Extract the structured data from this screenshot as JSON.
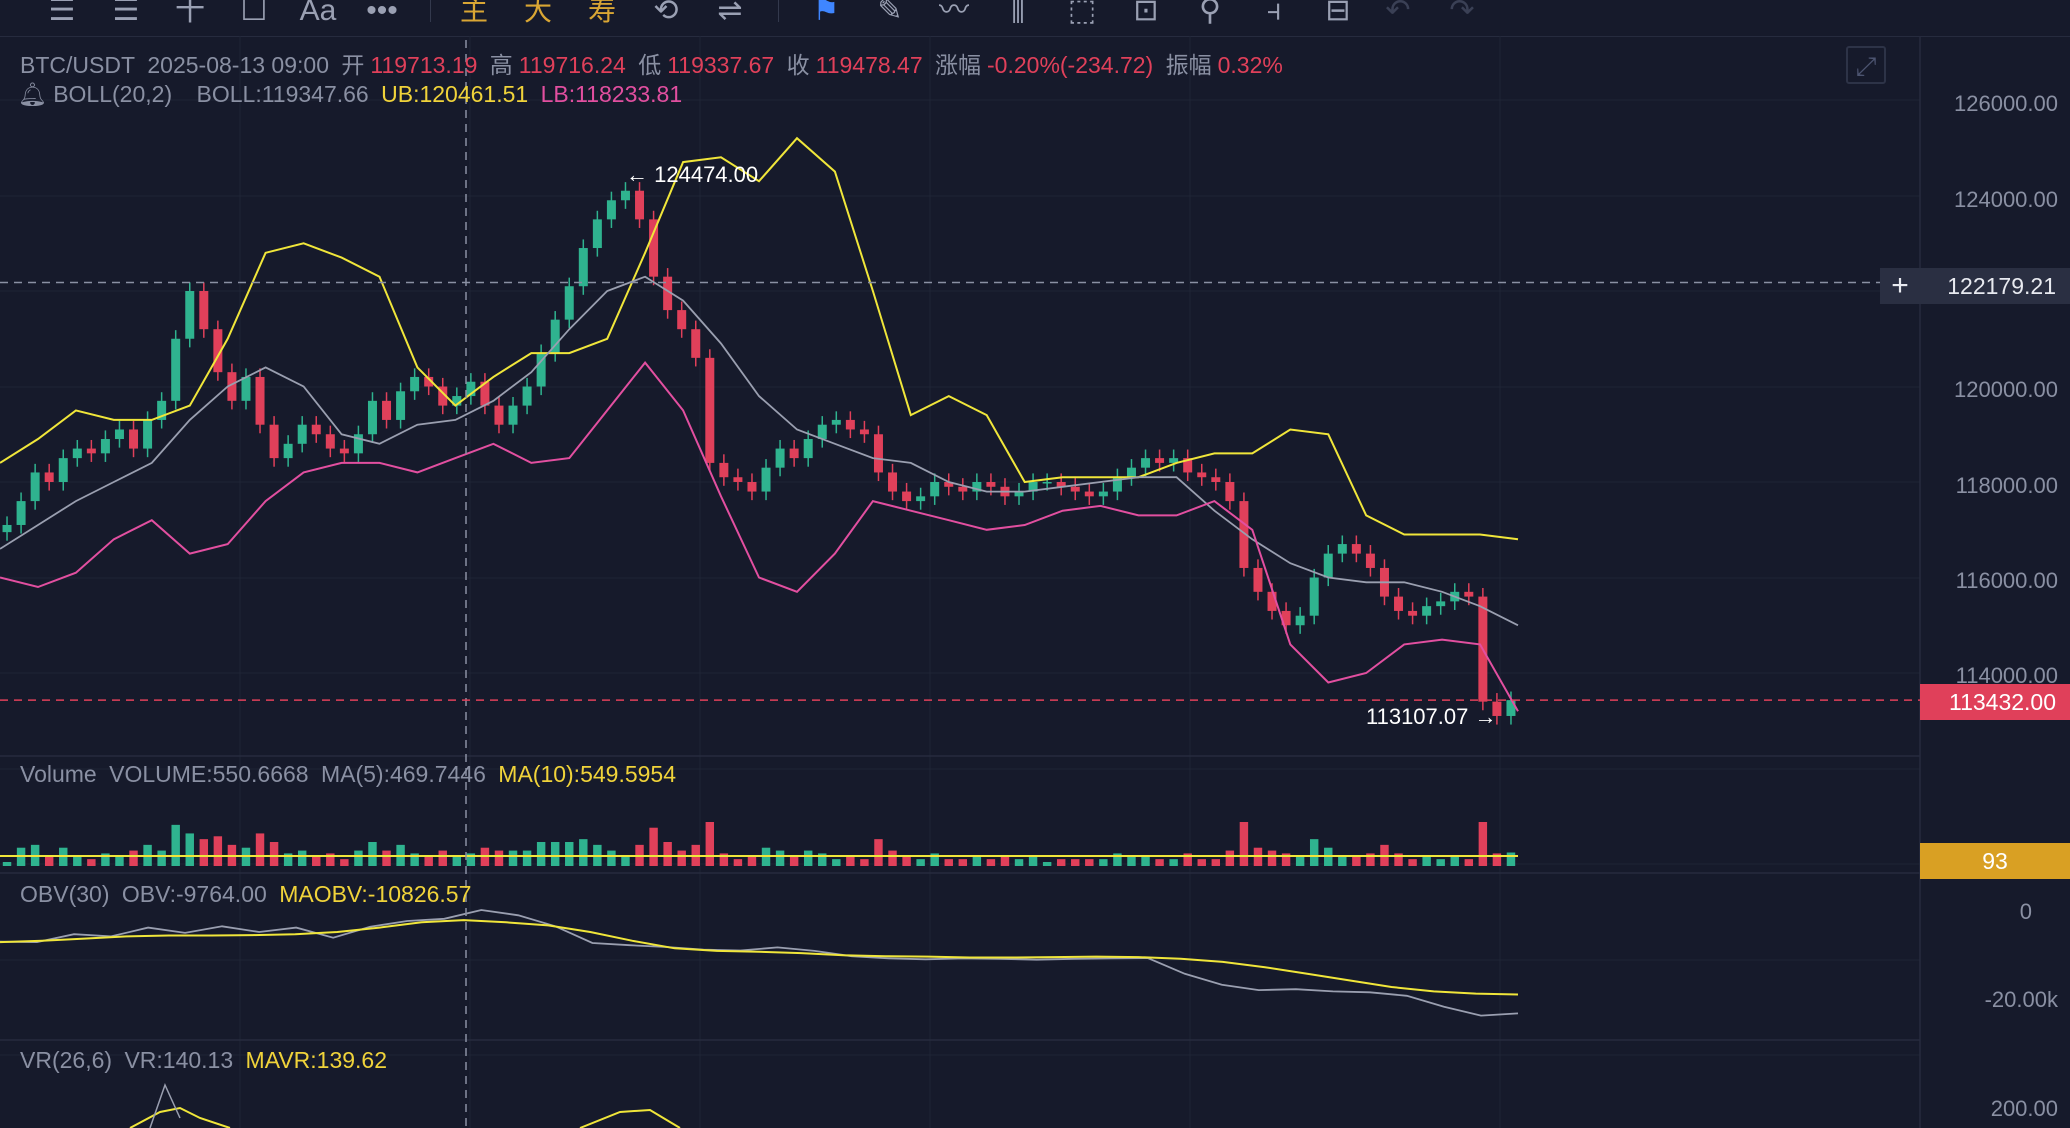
{
  "toolbar": {
    "items": [
      "☰",
      "☰",
      "十",
      "☐",
      "Aa",
      "•••",
      "主",
      "大",
      "寿",
      "⟲",
      "⇌",
      "⚑",
      "✎",
      "〰",
      "⫼",
      "⬚",
      "⊡",
      "⚲",
      "⫞",
      "⊟",
      "↶",
      "↷"
    ]
  },
  "header": {
    "symbol": "BTC/USDT",
    "datetime": "2025-08-13 09:00",
    "open_label": "开",
    "open": "119713.19",
    "high_label": "高",
    "high": "119716.24",
    "low_label": "低",
    "low": "119337.67",
    "close_label": "收",
    "close": "119478.47",
    "change_label": "涨幅",
    "change": "-0.20%(-234.72)",
    "amp_label": "振幅",
    "amp": "0.32%"
  },
  "boll_legend": {
    "name": "BOLL(20,2)",
    "mid": "BOLL:119347.66",
    "ub": "UB:120461.51",
    "lb": "LB:118233.81"
  },
  "volume_legend": {
    "name": "Volume",
    "vol": "VOLUME:550.6668",
    "ma5": "MA(5):469.7446",
    "ma10": "MA(10):549.5954"
  },
  "obv_legend": {
    "name": "OBV(30)",
    "obv": "OBV:-9764.00",
    "maobv": "MAOBV:-10826.57"
  },
  "vr_legend": {
    "name": "VR(26,6)",
    "vr": "VR:140.13",
    "mavr": "MAVR:139.62"
  },
  "price_axis": {
    "ticks": [
      "126000.00",
      "124000.00",
      "120000.00",
      "118000.00",
      "116000.00",
      "114000.00"
    ],
    "crosshair_value": "122179.21",
    "last_price": "113432.00"
  },
  "volume_axis": {
    "last_value": "93"
  },
  "obv_axis": {
    "ticks": [
      "0",
      "-20.00k"
    ]
  },
  "vr_axis": {
    "ticks": [
      "200.00"
    ]
  },
  "annotations": {
    "high_marker": "124474.00",
    "low_marker": "113107.07"
  },
  "colors": {
    "up": "#2fb38f",
    "down": "#e0405a",
    "ub": "#f0e63a",
    "mid": "#9a9fb0",
    "lb": "#e24fa0",
    "obv": "#9a9fb0",
    "maobv": "#f0e63a",
    "background": "#161a2b"
  },
  "chart_data": [
    {
      "type": "candlestick",
      "title": "BTC/USDT",
      "y_ticks": [
        126000,
        124000,
        120000,
        118000,
        116000,
        114000
      ],
      "ylim": [
        112000,
        126800
      ],
      "close_series": [
        117100,
        117600,
        118200,
        118000,
        118500,
        118700,
        118600,
        118900,
        119100,
        118700,
        119300,
        119700,
        121000,
        122000,
        121200,
        120300,
        119700,
        120200,
        119200,
        118500,
        118800,
        119200,
        119000,
        118700,
        118600,
        119000,
        119700,
        119300,
        119900,
        120200,
        120000,
        119600,
        119800,
        120100,
        119600,
        119200,
        119600,
        120000,
        120700,
        121400,
        122100,
        122900,
        123500,
        123900,
        124100,
        123500,
        122300,
        121600,
        121200,
        120600,
        118400,
        118100,
        118000,
        117800,
        118300,
        118700,
        118500,
        118900,
        119200,
        119300,
        119100,
        119000,
        118200,
        117800,
        117600,
        117700,
        118000,
        117900,
        117800,
        118000,
        117900,
        117700,
        117800,
        118000,
        118000,
        117900,
        117800,
        117700,
        117800,
        118100,
        118300,
        118500,
        118400,
        118500,
        118200,
        118100,
        118000,
        117600,
        116200,
        115700,
        115300,
        115000,
        115200,
        116000,
        116500,
        116700,
        116500,
        116200,
        115600,
        115300,
        115200,
        115400,
        115500,
        115700,
        115600,
        113400,
        113100,
        113432
      ],
      "high_marker": 124474.0,
      "low_marker": 113107.07,
      "last_price": 113432.0,
      "crosshair_price": 122179.21,
      "grid": true
    },
    {
      "type": "line",
      "title": "BOLL(20,2)",
      "series": [
        {
          "name": "UB",
          "values": [
            118400,
            118900,
            119500,
            119300,
            119300,
            119600,
            121000,
            122800,
            123000,
            122700,
            122300,
            120400,
            119600,
            120200,
            120700,
            120700,
            121000,
            122800,
            124700,
            124800,
            124300,
            125200,
            124500,
            122000,
            119400,
            119800,
            119400,
            118000,
            118100,
            118100,
            118100,
            118400,
            118600,
            118600,
            119100,
            119000,
            117300,
            116900,
            116900,
            116900,
            116800
          ]
        }
      ]
    },
    {
      "type": "line",
      "title": "BOLL(20,2)",
      "series": [
        {
          "name": "BOLL",
          "values": [
            116600,
            117100,
            117600,
            118000,
            118400,
            119300,
            120000,
            120400,
            120000,
            119000,
            118800,
            119200,
            119300,
            119700,
            120300,
            121200,
            122000,
            122300,
            121800,
            120900,
            119800,
            119100,
            118800,
            118500,
            118400,
            118000,
            117800,
            117800,
            117900,
            118000,
            118100,
            118100,
            117400,
            116800,
            116300,
            116000,
            115900,
            115900,
            115700,
            115400,
            115000
          ]
        }
      ]
    },
    {
      "type": "line",
      "title": "BOLL(20,2)",
      "series": [
        {
          "name": "LB",
          "values": [
            116000,
            115800,
            116100,
            116800,
            117200,
            116500,
            116700,
            117600,
            118200,
            118400,
            118400,
            118200,
            118500,
            118800,
            118400,
            118500,
            119500,
            120500,
            119500,
            117700,
            116000,
            115700,
            116500,
            117600,
            117400,
            117200,
            117000,
            117100,
            117400,
            117500,
            117300,
            117300,
            117600,
            117000,
            114600,
            113800,
            114000,
            114600,
            114700,
            114600,
            113200
          ]
        }
      ]
    },
    {
      "type": "bar",
      "title": "Volume",
      "y_ticks": [],
      "last_value": 93
    },
    {
      "type": "line",
      "title": "OBV(30)",
      "y_ticks": [
        0,
        -20000
      ],
      "ylim": [
        -30000,
        8000
      ],
      "series": [
        {
          "name": "OBV",
          "values": [
            -7200,
            -7300,
            -5500,
            -6000,
            -4000,
            -5200,
            -3700,
            -5000,
            -4000,
            -6300,
            -3800,
            -2500,
            -2000,
            0,
            -1200,
            -3700,
            -7500,
            -8000,
            -8400,
            -9000,
            -9200,
            -8500,
            -9300,
            -10500,
            -11000,
            -11200,
            -11000,
            -11100,
            -11300,
            -11100,
            -11000,
            -10900,
            -14500,
            -17000,
            -18200,
            -18000,
            -18500,
            -18700,
            -19500,
            -22000,
            -24000,
            -23500
          ]
        },
        {
          "name": "MAOBV",
          "values": [
            -7300,
            -7000,
            -6500,
            -6000,
            -5800,
            -5800,
            -5700,
            -5500,
            -5000,
            -4000,
            -2800,
            -2300,
            -2800,
            -3500,
            -5000,
            -7000,
            -8700,
            -9300,
            -9500,
            -9800,
            -10300,
            -10500,
            -10600,
            -10800,
            -10800,
            -10700,
            -10600,
            -10700,
            -11100,
            -11800,
            -13000,
            -14500,
            -16000,
            -17500,
            -18500,
            -19000,
            -19200
          ]
        }
      ]
    },
    {
      "type": "line",
      "title": "VR(26,6)",
      "y_ticks": [
        200
      ],
      "series": []
    }
  ]
}
